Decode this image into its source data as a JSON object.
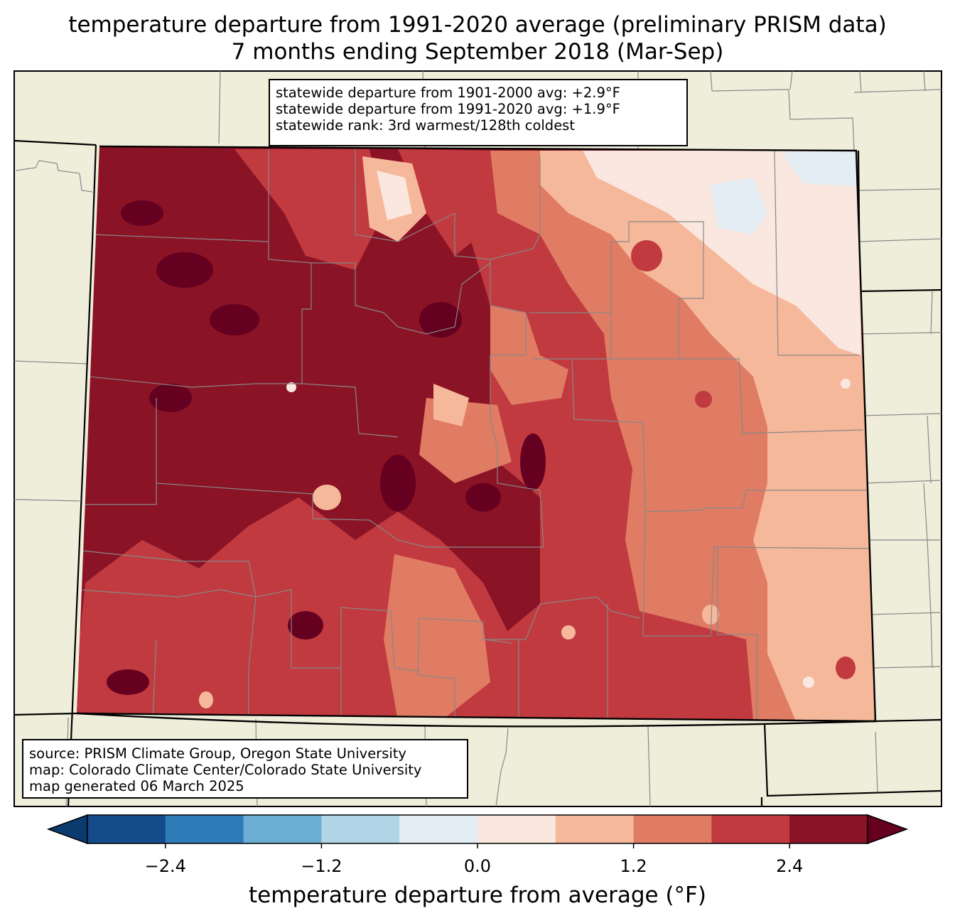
{
  "title": {
    "line1": "temperature departure from 1991-2020 average (preliminary PRISM data)",
    "line2": "7 months ending September 2018 (Mar-Sep)"
  },
  "stats_box": {
    "line1": "statewide departure from 1901-2000 avg: +2.9°F",
    "line2": "statewide departure from 1991-2020 avg: +1.9°F",
    "line3": "statewide rank: 3rd warmest/128th coldest"
  },
  "source_box": {
    "line1": "source: PRISM Climate Group, Oregon State University",
    "line2": "map: Colorado Climate Center/Colorado State University",
    "line3": "map generated 06 March 2025"
  },
  "colorbar": {
    "label": "temperature departure from average (°F)",
    "ticks": [
      "−2.4",
      "−1.2",
      "0.0",
      "1.2",
      "2.4"
    ],
    "tick_values": [
      -2.4,
      -1.2,
      0.0,
      1.2,
      2.4
    ],
    "range": [
      -3.0,
      3.0
    ],
    "step": 0.6,
    "colors": [
      "#0b3b6e",
      "#144b8a",
      "#2e7bb8",
      "#6caed4",
      "#b1d5e7",
      "#e4edf4",
      "#fae7df",
      "#f6b89b",
      "#e07c63",
      "#c13a3f",
      "#8b1326",
      "#650020"
    ]
  },
  "map_colors": {
    "land_background": "#efeedb",
    "darkest_red": "#650020",
    "dark_red": "#8b1326",
    "red": "#c13a3f",
    "salmon": "#e07c63",
    "light_salmon": "#f6b89b",
    "pale": "#fae7df",
    "pale_blue": "#e4edf4",
    "county_line": "#888888"
  }
}
